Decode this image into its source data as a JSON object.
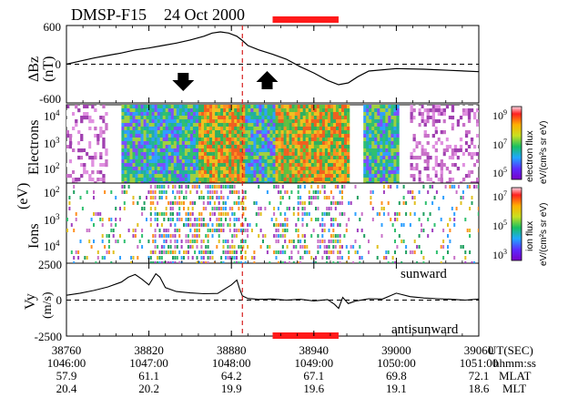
{
  "header": {
    "spacecraft": "DMSP-F15",
    "date": "24 Oct 2000"
  },
  "colors": {
    "highlight_bar": "#ff1a1a",
    "dashed_line": "#d62020",
    "arrow": "#000000",
    "trace": "#000000"
  },
  "icons": {
    "down_arrow": "down-arrow-icon",
    "up_arrow": "up-arrow-icon"
  },
  "chart_data": [
    {
      "type": "line",
      "panel": "magnetic-field",
      "ylabel": "ΔBz",
      "yunit": "(nT)",
      "yticks": [
        "600",
        "0",
        "-600"
      ],
      "ylim": [
        -600,
        600
      ],
      "xlim": [
        38760,
        39060
      ],
      "x": [
        38760,
        38770,
        38780,
        38790,
        38800,
        38810,
        38820,
        38830,
        38840,
        38850,
        38860,
        38866,
        38872,
        38878,
        38884,
        38888,
        38892,
        38900,
        38910,
        38920,
        38930,
        38940,
        38950,
        38958,
        38965,
        38972,
        38980,
        39000,
        39020,
        39040,
        39060
      ],
      "y": [
        0,
        50,
        100,
        140,
        180,
        230,
        260,
        300,
        340,
        390,
        450,
        500,
        520,
        500,
        450,
        380,
        300,
        230,
        160,
        80,
        -40,
        -140,
        -260,
        -330,
        -300,
        -200,
        -110,
        -70,
        -80,
        -100,
        -120
      ],
      "zero_line": true
    },
    {
      "type": "heatmap",
      "panel": "electrons",
      "ylabel": "Electrons",
      "yunit": "(eV)",
      "yticks": [
        "10^4",
        "10^3",
        "10^2"
      ],
      "colorbar": {
        "label": "electron flux",
        "unit": "eV/(cm²s sr eV)",
        "ticks": [
          "10^9",
          "10^7",
          "10^5"
        ]
      },
      "regions": [
        {
          "from": 38760,
          "to": 38790,
          "level": "low"
        },
        {
          "from": 38800,
          "to": 38842,
          "level": "medium"
        },
        {
          "from": 38842,
          "to": 38856,
          "level": "medium"
        },
        {
          "from": 38856,
          "to": 38890,
          "level": "high"
        },
        {
          "from": 38890,
          "to": 38912,
          "level": "medium"
        },
        {
          "from": 38912,
          "to": 38965,
          "level": "high"
        },
        {
          "from": 38975,
          "to": 39002,
          "level": "medium"
        },
        {
          "from": 39010,
          "to": 39060,
          "level": "low"
        }
      ]
    },
    {
      "type": "heatmap",
      "panel": "ions",
      "ylabel": "Ions",
      "yunit": "(eV)",
      "yticks": [
        "10^2",
        "10^3",
        "10^4"
      ],
      "colorbar": {
        "label": "ion flux",
        "unit": "eV/(cm²s sr eV)",
        "ticks": [
          "10^7",
          "10^5",
          "10^3"
        ]
      }
    },
    {
      "type": "line",
      "panel": "velocity",
      "ylabel": "Vy",
      "yunit": "(m/s)",
      "yticks": [
        "2500",
        "0",
        "-2500"
      ],
      "ylim": [
        -2500,
        2500
      ],
      "x": [
        38760,
        38770,
        38780,
        38790,
        38800,
        38805,
        38810,
        38815,
        38820,
        38825,
        38828,
        38832,
        38840,
        38850,
        38860,
        38870,
        38880,
        38884,
        38886,
        38888,
        38892,
        38900,
        38910,
        38920,
        38930,
        38940,
        38950,
        38955,
        38958,
        38961,
        38965,
        38970,
        38980,
        38990,
        39000,
        39010,
        39020,
        39030,
        39040,
        39050,
        39060
      ],
      "y": [
        350,
        500,
        700,
        950,
        1300,
        1650,
        1850,
        1500,
        1100,
        1900,
        1650,
        900,
        620,
        520,
        460,
        480,
        1100,
        1450,
        800,
        300,
        120,
        50,
        80,
        0,
        60,
        -60,
        40,
        -300,
        -600,
        200,
        -250,
        -80,
        100,
        80,
        500,
        250,
        150,
        100,
        60,
        0,
        80
      ],
      "annotations": [
        "sunward",
        "antisunward"
      ],
      "zero_line": true
    }
  ],
  "event_marker_ut": 38888,
  "highlight_bar_ut": [
    38910,
    38958
  ],
  "arrows": [
    {
      "direction": "down",
      "ut": 38845,
      "dbz": -270
    },
    {
      "direction": "up",
      "ut": 38906,
      "dbz": -270
    }
  ],
  "xaxis": {
    "ut": [
      38760,
      38820,
      38880,
      38940,
      39000,
      39060
    ],
    "ut_labels": [
      "38760",
      "38820",
      "38880",
      "38940",
      "39000",
      "39060"
    ],
    "ut_unit": "UT(SEC)",
    "hhmmss": [
      "1046:00",
      "1047:00",
      "1048:00",
      "1049:00",
      "1050:00",
      "1051:00"
    ],
    "hhmmss_unit": "hhmm:ss",
    "mlat": [
      "57.9",
      "61.1",
      "64.2",
      "67.1",
      "69.8",
      "72.1"
    ],
    "mlat_unit": "MLAT",
    "mlt": [
      "20.4",
      "20.2",
      "19.9",
      "19.6",
      "19.1",
      "18.6"
    ],
    "mlt_unit": "MLT"
  }
}
